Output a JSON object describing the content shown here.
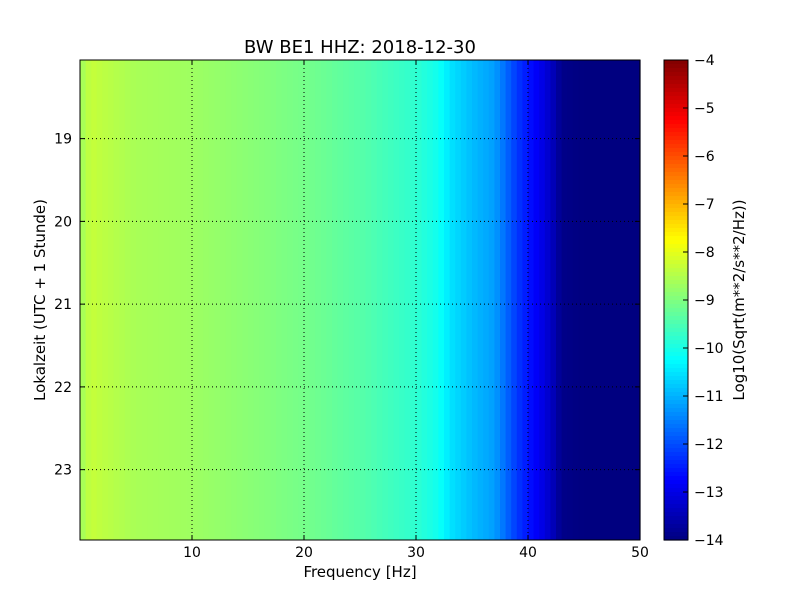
{
  "chart_data": {
    "type": "heatmap",
    "title": "BW BE1 HHZ: 2018-12-30",
    "xlabel": "Frequency [Hz]",
    "ylabel": "Lokalzeit (UTC + 1 Stunde)",
    "colorbar_label": "Log10(Sqrt(m**2/s**2/Hz))",
    "xlim": [
      0,
      50
    ],
    "ylim": [
      18.05,
      23.85
    ],
    "y_inverted": true,
    "x_ticks": [
      10,
      20,
      30,
      40,
      50
    ],
    "x_tick_labels": [
      "10",
      "20",
      "30",
      "40",
      "50"
    ],
    "y_ticks": [
      19,
      20,
      21,
      22,
      23
    ],
    "y_tick_labels": [
      "19",
      "20",
      "21",
      "22",
      "23"
    ],
    "colorbar_range": [
      -14,
      -4
    ],
    "colorbar_ticks": [
      -4,
      -5,
      -6,
      -7,
      -8,
      -9,
      -10,
      -11,
      -12,
      -13,
      -14
    ],
    "colorbar_tick_labels": [
      "−4",
      "−5",
      "−6",
      "−7",
      "−8",
      "−9",
      "−10",
      "−11",
      "−12",
      "−13",
      "−14"
    ],
    "colormap": "jet",
    "grid": true,
    "frequency_profile": {
      "frequency_hz": [
        0,
        1,
        2,
        5,
        10,
        15,
        20,
        25,
        30,
        32,
        33,
        35,
        37,
        39,
        41,
        42,
        43,
        45,
        50
      ],
      "log10_value": [
        -8.7,
        -8.3,
        -8.4,
        -8.6,
        -8.7,
        -8.9,
        -9.1,
        -9.4,
        -9.8,
        -10.1,
        -10.5,
        -10.9,
        -11.2,
        -12.2,
        -12.9,
        -13.3,
        -13.9,
        -14,
        -14
      ]
    }
  }
}
